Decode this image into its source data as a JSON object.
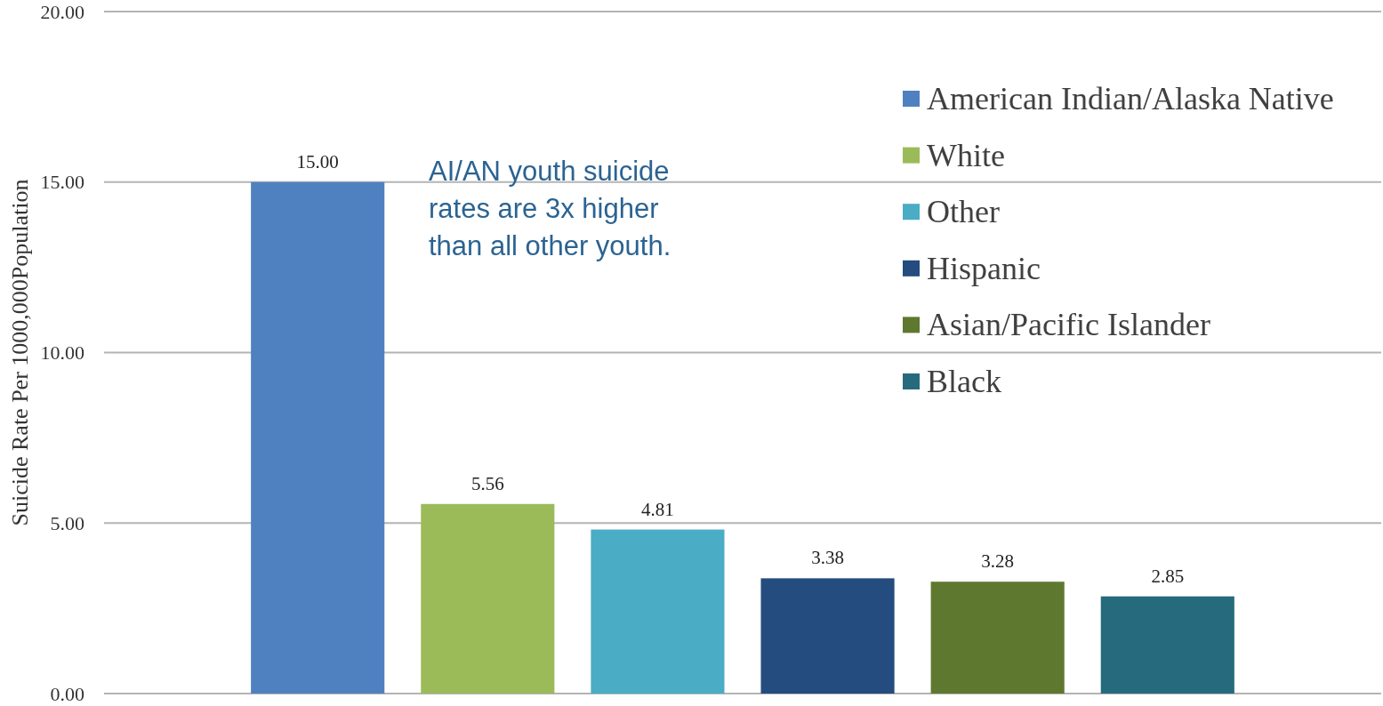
{
  "chart_data": {
    "type": "bar",
    "ylabel": "Suicide Rate Per 1000,000Population",
    "categories": [
      null
    ],
    "series": [
      {
        "name": "American Indian/Alaska Native",
        "color": "#4f81c0",
        "values": [
          15.0
        ],
        "value_labels": [
          "15.00"
        ]
      },
      {
        "name": "White",
        "color": "#9bbb59",
        "values": [
          5.56
        ],
        "value_labels": [
          "5.56"
        ]
      },
      {
        "name": "Other",
        "color": "#4bacc6",
        "values": [
          4.81
        ],
        "value_labels": [
          "4.81"
        ]
      },
      {
        "name": "Hispanic",
        "color": "#244c7e",
        "values": [
          3.38
        ],
        "value_labels": [
          "3.38"
        ]
      },
      {
        "name": "Asian/Pacific Islander",
        "color": "#5e7830",
        "values": [
          3.28
        ],
        "value_labels": [
          "3.28"
        ]
      },
      {
        "name": "Black",
        "color": "#266a7e",
        "values": [
          2.85
        ],
        "value_labels": [
          "2.85"
        ]
      }
    ],
    "ylim": [
      0,
      20
    ],
    "yticks": [
      {
        "value": 0,
        "label": "0.00"
      },
      {
        "value": 5,
        "label": "5.00"
      },
      {
        "value": 10,
        "label": "10.00"
      },
      {
        "value": 15,
        "label": "15.00"
      },
      {
        "value": 20,
        "label": "20.00"
      }
    ],
    "grid": "y",
    "legend": "top right",
    "annotations": [
      "AI/AN youth suicide rates are 3x higher than all other youth."
    ]
  }
}
